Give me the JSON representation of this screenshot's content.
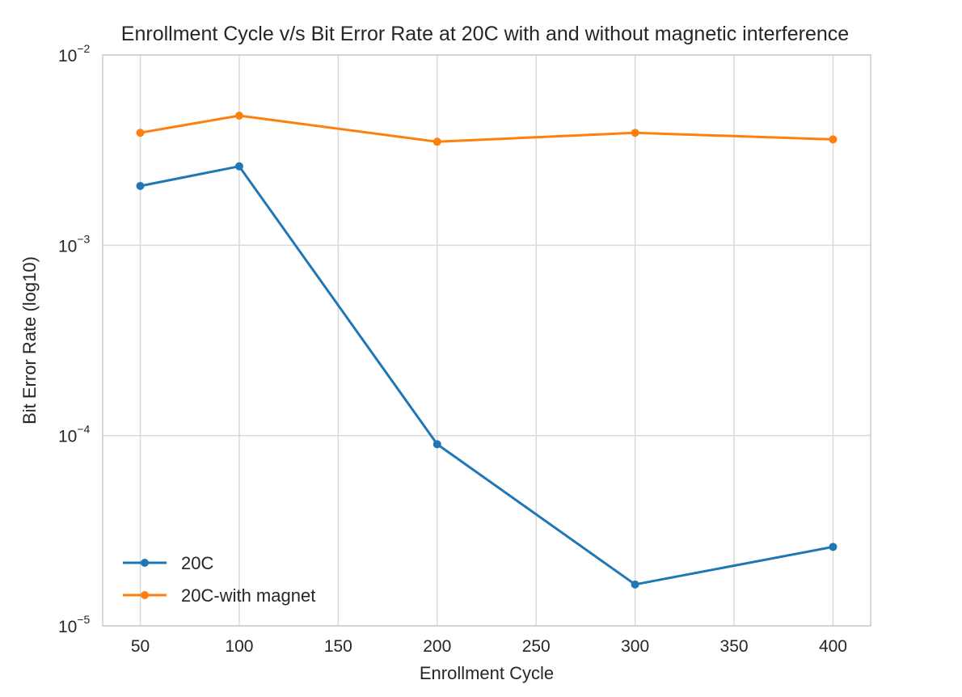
{
  "chart_data": {
    "type": "line",
    "title": "Enrollment Cycle v/s Bit Error Rate at 20C with and without magnetic interference",
    "xlabel": "Enrollment Cycle",
    "ylabel": "Bit Error Rate (log10)",
    "x": [
      50,
      100,
      200,
      300,
      400
    ],
    "xlim": [
      31,
      419
    ],
    "ylim": [
      1e-05,
      0.01
    ],
    "yscale": "log",
    "xticks": [
      50,
      100,
      150,
      200,
      250,
      300,
      350,
      400
    ],
    "yticks": [
      {
        "base": "10",
        "exp": "−5",
        "value": 1e-05
      },
      {
        "base": "10",
        "exp": "−4",
        "value": 0.0001
      },
      {
        "base": "10",
        "exp": "−3",
        "value": 0.001
      },
      {
        "base": "10",
        "exp": "−2",
        "value": 0.01
      }
    ],
    "grid": true,
    "legend_position": "lower-left",
    "series": [
      {
        "name": "20C",
        "color": "#1f77b4",
        "values": [
          0.00205,
          0.0026,
          9e-05,
          1.65e-05,
          2.6e-05
        ]
      },
      {
        "name": "20C-with magnet",
        "color": "#ff7f0e",
        "values": [
          0.0039,
          0.0048,
          0.0035,
          0.0039,
          0.0036
        ]
      }
    ]
  }
}
